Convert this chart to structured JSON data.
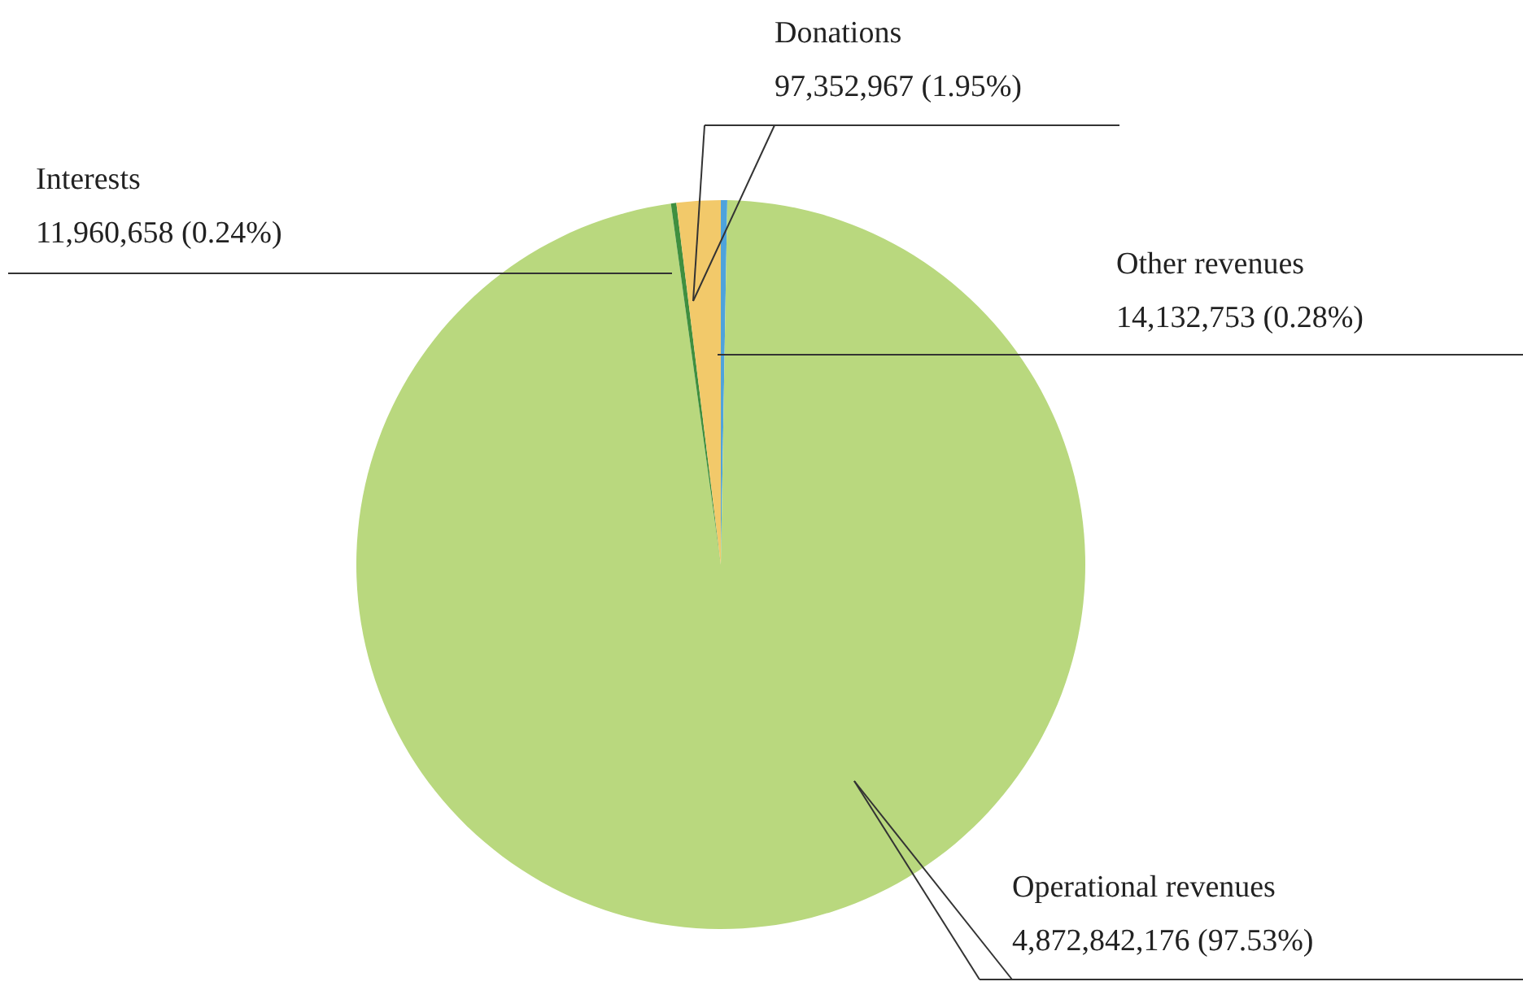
{
  "chart_data": {
    "type": "pie",
    "categories": [
      "Other revenues",
      "Operational revenues",
      "Interests",
      "Donations"
    ],
    "values": [
      14132753,
      4872842176,
      11960658,
      97352967
    ],
    "colors": [
      "#4ea3dc",
      "#b9d87e",
      "#3f8f3f",
      "#f2c96a"
    ],
    "value_labels": [
      "14,132,753 (0.28%)",
      "4,872,842,176 (97.53%)",
      "11,960,658 (0.24%)",
      "97,352,967 (1.95%)"
    ]
  }
}
